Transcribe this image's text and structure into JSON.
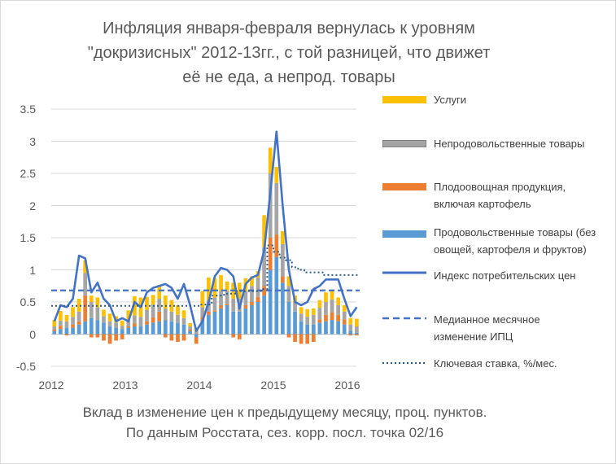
{
  "title_lines": [
    "Инфляция января-февраля вернулась к уровням",
    "\"докризисных\" 2012-13гг., с той разницей, что движет",
    "её не еда, а непрод. товары"
  ],
  "subtitle_lines": [
    "Вклад в изменение цен к предыдущему месяцу, проц. пунктов.",
    "По данным Росстата, сез. корр. посл. точка 02/16"
  ],
  "legend": [
    {
      "label": "Услуги",
      "color": "#ffc000",
      "kind": "bar"
    },
    {
      "label": "Непродовольственные товары",
      "color": "#a5a5a5",
      "kind": "bar"
    },
    {
      "label": "Плодоовощная продукция, включая картофель",
      "color": "#ed7d31",
      "kind": "bar"
    },
    {
      "label": "Продовольственные товары (без овощей, картофеля и фруктов)",
      "color": "#5b9bd5",
      "kind": "bar"
    },
    {
      "label": "Индекс потребительских цен",
      "color": "#4472c4",
      "kind": "line"
    },
    {
      "label": "Медианное месячное изменение ИПЦ",
      "color": "#4472c4",
      "kind": "dash"
    },
    {
      "label": "Ключевая ставка, %/мес.",
      "color": "#2e5c8a",
      "kind": "dot"
    }
  ],
  "chart_data": {
    "type": "bar",
    "stacked": true,
    "x_start": "2012-01",
    "x_end": "2016-02",
    "frequency": "monthly",
    "x_tick_labels": [
      "2012",
      "2013",
      "2014",
      "2015",
      "2016"
    ],
    "ylim": [
      -0.5,
      3.5
    ],
    "y_tick_labels": [
      "-0.5",
      "0",
      "0.5",
      "1",
      "1.5",
      "2",
      "2.5",
      "3",
      "3.5"
    ],
    "grid": true,
    "legend_position": "right",
    "series": [
      {
        "name": "Продовольственные товары (без овощей, картофеля и фруктов)",
        "color": "#5b9bd5",
        "values": [
          0.05,
          0.08,
          0.1,
          0.1,
          0.15,
          0.2,
          0.25,
          0.22,
          0.18,
          0.12,
          0.1,
          0.08,
          0.1,
          0.12,
          0.12,
          0.15,
          0.18,
          0.2,
          0.22,
          0.2,
          0.18,
          0.15,
          0.05,
          -0.05,
          0.22,
          0.3,
          0.35,
          0.4,
          0.45,
          0.35,
          0.35,
          0.4,
          0.45,
          0.5,
          0.6,
          1.0,
          1.2,
          0.8,
          0.5,
          0.35,
          0.2,
          0.15,
          0.15,
          0.18,
          0.2,
          0.22,
          0.2,
          0.15,
          0.05,
          0.02
        ]
      },
      {
        "name": "Плодоовощная продукция, включая картофель",
        "color": "#ed7d31",
        "values": [
          0.02,
          0.05,
          -0.02,
          0.05,
          0.05,
          0.4,
          -0.05,
          -0.05,
          -0.1,
          -0.15,
          -0.1,
          -0.08,
          0.02,
          0.05,
          0.0,
          0.05,
          0.08,
          0.15,
          -0.05,
          -0.1,
          -0.12,
          -0.1,
          0.02,
          -0.1,
          0.05,
          0.05,
          0.02,
          0.05,
          0.02,
          -0.05,
          -0.08,
          0.05,
          0.05,
          0.08,
          0.15,
          0.5,
          0.35,
          0.1,
          -0.05,
          -0.12,
          -0.15,
          -0.15,
          -0.12,
          0.05,
          0.1,
          0.12,
          0.1,
          0.08,
          -0.02,
          -0.02
        ]
      },
      {
        "name": "Непродовольственные товары",
        "color": "#a5a5a5",
        "values": [
          0.05,
          0.08,
          0.1,
          0.12,
          0.15,
          0.35,
          0.25,
          0.2,
          0.1,
          0.08,
          0.08,
          0.05,
          0.1,
          0.12,
          0.15,
          0.18,
          0.2,
          0.2,
          0.18,
          0.15,
          0.12,
          0.1,
          0.05,
          0.05,
          0.15,
          0.18,
          0.2,
          0.22,
          0.2,
          0.2,
          0.2,
          0.22,
          0.25,
          0.3,
          0.6,
          1.0,
          0.8,
          0.5,
          0.25,
          0.15,
          0.12,
          0.12,
          0.15,
          0.18,
          0.2,
          0.2,
          0.15,
          0.12,
          0.1,
          0.1
        ]
      },
      {
        "name": "Услуги",
        "color": "#ffc000",
        "values": [
          0.1,
          0.15,
          0.1,
          0.15,
          0.2,
          0.2,
          0.1,
          0.15,
          0.1,
          0.12,
          0.1,
          0.08,
          0.15,
          0.3,
          0.3,
          0.2,
          0.15,
          0.2,
          0.2,
          0.18,
          0.15,
          0.12,
          0.05,
          0.05,
          0.25,
          0.35,
          0.3,
          0.25,
          0.15,
          0.25,
          0.25,
          0.2,
          0.15,
          0.1,
          0.5,
          0.4,
          0.25,
          0.2,
          0.15,
          0.1,
          0.1,
          0.12,
          0.1,
          0.12,
          0.15,
          0.15,
          0.12,
          0.1,
          0.1,
          0.12
        ]
      },
      {
        "name": "Индекс потребительских цен",
        "color": "#4472c4",
        "kind": "line",
        "values": [
          0.2,
          0.45,
          0.42,
          0.55,
          1.22,
          1.18,
          0.65,
          0.8,
          0.55,
          0.45,
          0.2,
          0.25,
          0.2,
          0.5,
          0.42,
          0.65,
          0.72,
          0.75,
          0.78,
          0.72,
          0.55,
          0.78,
          0.45,
          0.05,
          0.2,
          0.5,
          0.9,
          1.03,
          1.0,
          0.9,
          0.4,
          0.78,
          0.88,
          0.92,
          1.3,
          2.2,
          3.15,
          2.0,
          1.0,
          0.5,
          0.45,
          0.5,
          0.7,
          0.75,
          0.85,
          0.85,
          0.85,
          0.55,
          0.28,
          0.42
        ]
      },
      {
        "name": "Медианное месячное изменение ИПЦ",
        "color": "#4472c4",
        "kind": "dashed",
        "values": [
          0.68,
          0.68,
          0.68,
          0.68,
          0.68,
          0.68,
          0.68,
          0.68,
          0.68,
          0.68,
          0.68,
          0.68,
          0.68,
          0.68,
          0.68,
          0.68,
          0.68,
          0.68,
          0.68,
          0.68,
          0.68,
          0.68,
          0.68,
          0.68,
          0.68,
          0.68,
          0.68,
          0.68,
          0.68,
          0.68,
          0.68,
          0.68,
          0.68,
          0.68,
          0.68,
          0.68,
          0.68,
          0.68,
          0.68,
          0.68,
          0.68,
          0.68,
          0.68,
          0.68,
          0.68,
          0.68,
          0.68,
          0.68,
          0.68,
          0.68
        ]
      },
      {
        "name": "Ключевая ставка, %/мес.",
        "color": "#2e5c8a",
        "kind": "dotted",
        "values": [
          0.44,
          0.44,
          0.44,
          0.44,
          0.44,
          0.44,
          0.44,
          0.44,
          0.44,
          0.44,
          0.44,
          0.44,
          0.44,
          0.44,
          0.44,
          0.44,
          0.44,
          0.44,
          0.44,
          0.44,
          0.44,
          0.44,
          0.44,
          0.44,
          0.46,
          0.46,
          0.6,
          0.6,
          0.63,
          0.63,
          0.67,
          0.67,
          0.67,
          0.67,
          0.7,
          1.38,
          1.28,
          1.19,
          1.15,
          1.04,
          1.0,
          0.96,
          0.96,
          0.96,
          0.92,
          0.92,
          0.92,
          0.92,
          0.92,
          0.92
        ]
      }
    ]
  }
}
